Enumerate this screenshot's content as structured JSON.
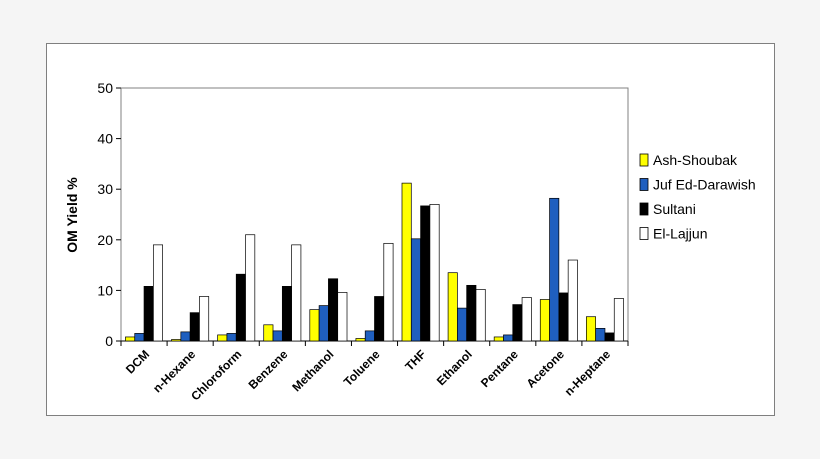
{
  "chart_data": {
    "type": "bar",
    "ylabel": "OM Yield %",
    "xlabel": "",
    "title": "",
    "ylim": [
      0,
      50
    ],
    "yticks": [
      0,
      10,
      20,
      30,
      40,
      50
    ],
    "grid": false,
    "legend_position": "right",
    "categories": [
      "DCM",
      "n-Hexane",
      "Chloroform",
      "Benzene",
      "Methanol",
      "Toluene",
      "THF",
      "Ethanol",
      "Pentane",
      "Acetone",
      "n-Heptane"
    ],
    "series": [
      {
        "name": "Ash-Shoubak",
        "color": "#ffff00",
        "values": [
          0.8,
          0.3,
          1.2,
          3.2,
          6.2,
          0.5,
          31.2,
          13.5,
          0.8,
          8.2,
          4.8
        ]
      },
      {
        "name": "Juf Ed-Darawish",
        "color": "#1f5fbf",
        "values": [
          1.5,
          1.8,
          1.5,
          2.0,
          7.0,
          2.0,
          20.2,
          6.5,
          1.2,
          28.2,
          2.5
        ]
      },
      {
        "name": "Sultani",
        "color": "#000000",
        "values": [
          10.8,
          5.6,
          13.2,
          10.8,
          12.3,
          8.8,
          26.7,
          11.0,
          7.2,
          9.5,
          1.6
        ]
      },
      {
        "name": "El-Lajjun",
        "color": "#ffffff",
        "values": [
          19.0,
          8.8,
          21.0,
          19.0,
          9.6,
          19.3,
          27.0,
          10.2,
          8.6,
          16.0,
          8.4
        ]
      }
    ]
  }
}
